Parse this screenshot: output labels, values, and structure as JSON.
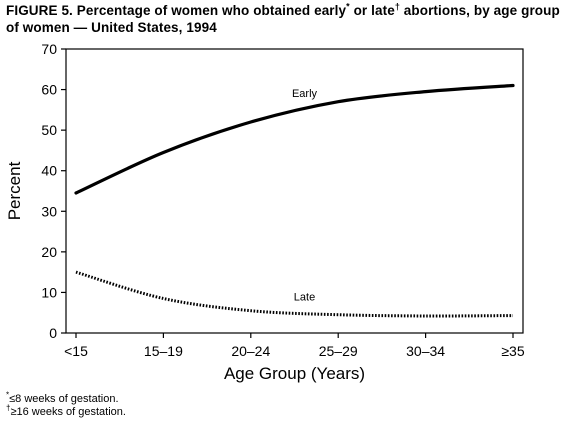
{
  "title": {
    "prefix": "FIGURE 5. Percentage of women who obtained early",
    "early_mark": "*",
    "middle": " or late",
    "late_mark": "†",
    "suffix": " abortions, by age group of women — United States, 1994"
  },
  "chart_data": {
    "type": "line",
    "categories": [
      "<15",
      "15–19",
      "20–24",
      "25–29",
      "30–34",
      "≥35"
    ],
    "series": [
      {
        "name": "Early",
        "values": [
          34.5,
          44.5,
          52,
          57,
          59.5,
          61
        ],
        "style": "solid",
        "color": "#000000"
      },
      {
        "name": "Late",
        "values": [
          15,
          8.5,
          5.5,
          4.5,
          4.2,
          4.3
        ],
        "style": "dotted",
        "color": "#000000"
      }
    ],
    "xlabel": "Age Group (Years)",
    "ylabel": "Percent",
    "ylim": [
      0,
      70
    ],
    "yticks": [
      0,
      10,
      20,
      30,
      40,
      50,
      60,
      70
    ],
    "grid": false,
    "legend": "inline labels"
  },
  "footnotes": [
    {
      "mark": "*",
      "text": "≤8 weeks of gestation."
    },
    {
      "mark": "†",
      "text": "≥16 weeks of gestation."
    }
  ]
}
